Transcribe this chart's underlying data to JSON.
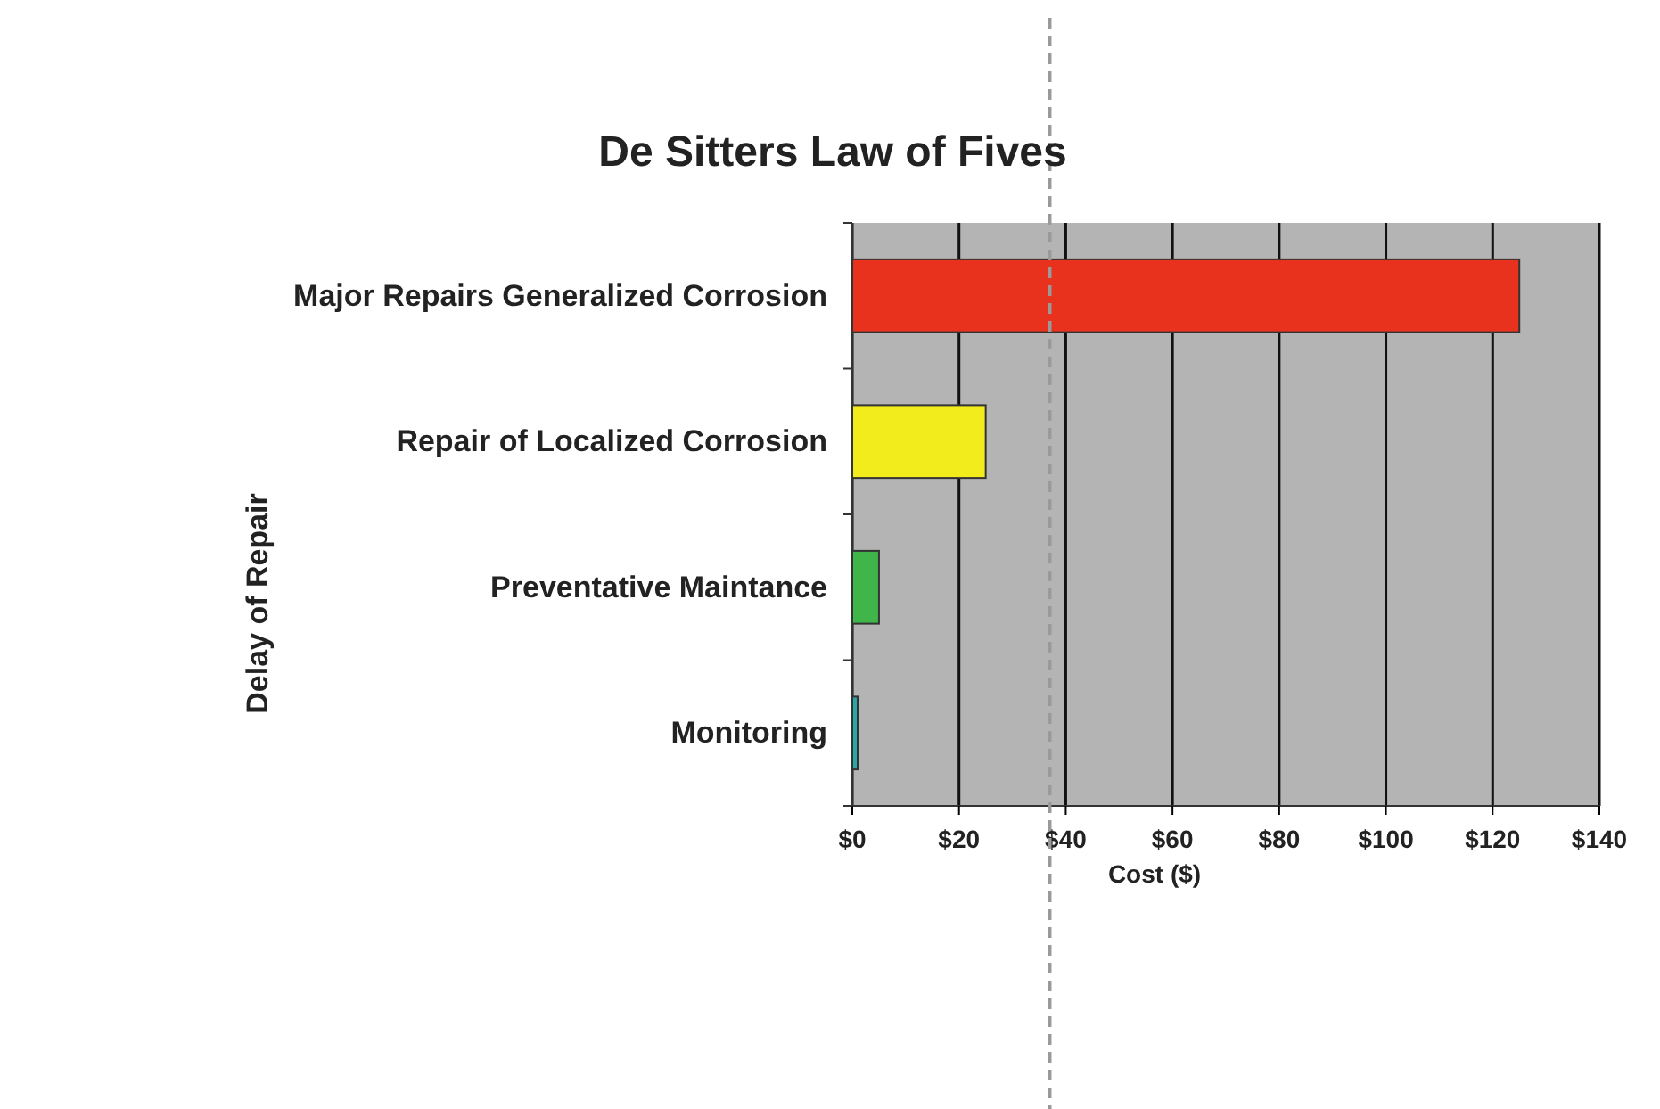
{
  "chart_data": {
    "type": "bar",
    "orientation": "horizontal",
    "title": "De Sitters Law of Fives",
    "xlabel": "Cost ($)",
    "ylabel": "Delay of Repair",
    "categories": [
      "Major Repairs Generalized Corrosion",
      "Repair of Localized Corrosion",
      "Preventative Maintance",
      "Monitoring"
    ],
    "values": [
      125,
      25,
      5,
      1
    ],
    "colors": [
      "#e8321e",
      "#f3ec1c",
      "#3fb54a",
      "#2aa5a8"
    ],
    "xlim": [
      0,
      140
    ],
    "xticks": [
      {
        "value": 0,
        "label": "$0"
      },
      {
        "value": 20,
        "label": "$20"
      },
      {
        "value": 40,
        "label": "$40"
      },
      {
        "value": 60,
        "label": "$60"
      },
      {
        "value": 80,
        "label": "$80"
      },
      {
        "value": 100,
        "label": "$100"
      },
      {
        "value": 120,
        "label": "$120"
      },
      {
        "value": 140,
        "label": "$140"
      }
    ],
    "grid": "x",
    "ref_lines": [
      {
        "axis": "x",
        "value": 37,
        "color": "#9a9a9a",
        "line_style": "dashed"
      }
    ]
  }
}
